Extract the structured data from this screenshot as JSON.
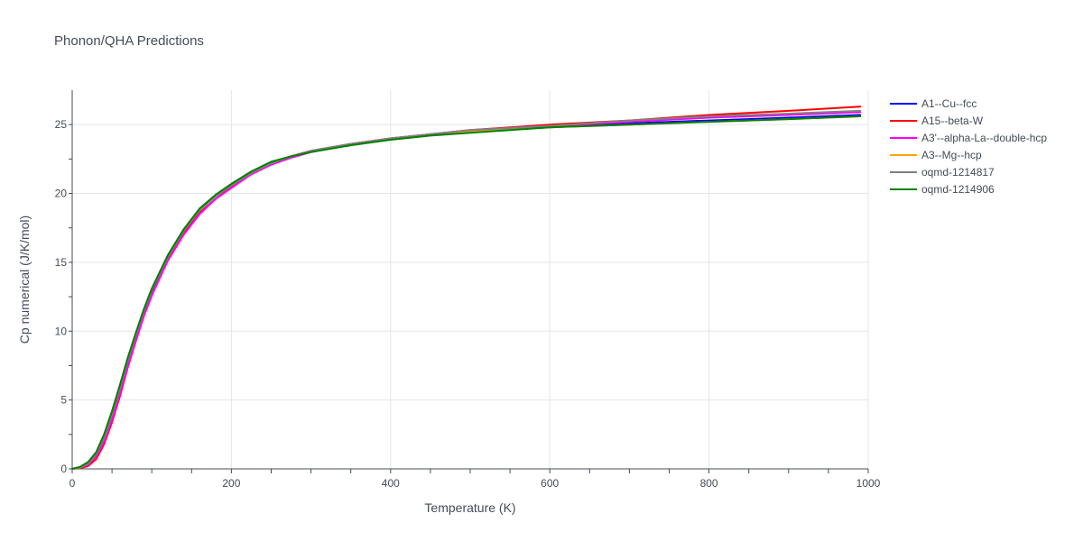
{
  "title": "Phonon/QHA Predictions",
  "chart_data": {
    "type": "line",
    "title": "Phonon/QHA Predictions",
    "xlabel": "Temperature (K)",
    "ylabel": "Cp numerical (J/K/mol)",
    "xlim": [
      0,
      1000
    ],
    "ylim": [
      0,
      27.5
    ],
    "xticks": [
      0,
      200,
      400,
      600,
      800,
      1000
    ],
    "yticks": [
      0,
      5,
      10,
      15,
      20,
      25
    ],
    "grid": true,
    "legend_position": "top-right",
    "x": [
      0,
      10,
      20,
      30,
      40,
      50,
      60,
      70,
      80,
      90,
      100,
      120,
      140,
      160,
      180,
      200,
      225,
      250,
      275,
      300,
      350,
      400,
      450,
      500,
      600,
      700,
      800,
      900,
      990
    ],
    "series": [
      {
        "name": "A1--Cu--fcc",
        "color": "#0000ff",
        "values": [
          0,
          0.1,
          0.4,
          1.0,
          2.2,
          3.9,
          5.8,
          7.8,
          9.7,
          11.4,
          12.9,
          15.4,
          17.3,
          18.8,
          19.8,
          20.6,
          21.5,
          22.2,
          22.7,
          23.1,
          23.6,
          24.0,
          24.3,
          24.5,
          24.8,
          25.1,
          25.3,
          25.5,
          25.7
        ]
      },
      {
        "name": "A15--beta-W",
        "color": "#ff0000",
        "values": [
          0,
          0.05,
          0.2,
          0.7,
          1.8,
          3.4,
          5.3,
          7.4,
          9.3,
          11.1,
          12.6,
          15.2,
          17.1,
          18.6,
          19.6,
          20.5,
          21.4,
          22.1,
          22.6,
          23.0,
          23.6,
          24.0,
          24.3,
          24.6,
          25.0,
          25.3,
          25.7,
          26.0,
          26.3
        ]
      },
      {
        "name": "A3'--alpha-La--double-hcp",
        "color": "#ff00ff",
        "values": [
          0,
          0.1,
          0.3,
          0.9,
          2.0,
          3.6,
          5.5,
          7.5,
          9.4,
          11.1,
          12.6,
          15.1,
          17.0,
          18.5,
          19.6,
          20.4,
          21.4,
          22.1,
          22.6,
          23.0,
          23.6,
          24.0,
          24.3,
          24.6,
          24.9,
          25.2,
          25.5,
          25.7,
          25.9
        ]
      },
      {
        "name": "A3--Mg--hcp",
        "color": "#ffa500",
        "values": [
          0,
          0.1,
          0.4,
          1.1,
          2.3,
          4.0,
          6.0,
          8.0,
          9.8,
          11.5,
          13.0,
          15.4,
          17.3,
          18.8,
          19.8,
          20.6,
          21.5,
          22.2,
          22.7,
          23.1,
          23.6,
          24.0,
          24.3,
          24.5,
          24.8,
          25.0,
          25.2,
          25.4,
          25.6
        ]
      },
      {
        "name": "oqmd-1214817",
        "color": "#808080",
        "values": [
          0,
          0.1,
          0.4,
          1.1,
          2.3,
          4.0,
          5.9,
          7.9,
          9.8,
          11.5,
          13.0,
          15.4,
          17.3,
          18.8,
          19.8,
          20.6,
          21.5,
          22.2,
          22.7,
          23.1,
          23.6,
          24.0,
          24.3,
          24.6,
          24.9,
          25.3,
          25.6,
          25.8,
          26.0
        ]
      },
      {
        "name": "oqmd-1214906",
        "color": "#008000",
        "values": [
          0,
          0.15,
          0.5,
          1.2,
          2.5,
          4.2,
          6.1,
          8.1,
          9.9,
          11.6,
          13.1,
          15.5,
          17.4,
          18.9,
          19.9,
          20.7,
          21.6,
          22.3,
          22.7,
          23.0,
          23.5,
          23.9,
          24.2,
          24.4,
          24.8,
          25.0,
          25.2,
          25.4,
          25.6
        ]
      }
    ]
  }
}
